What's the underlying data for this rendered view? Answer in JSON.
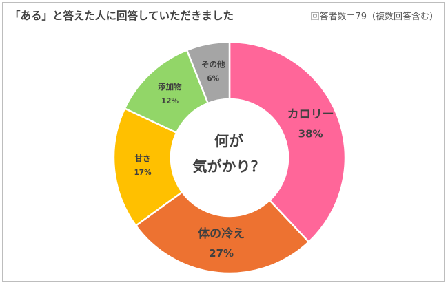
{
  "header": {
    "title": "「ある」と答えた人に回答していただきました",
    "note": "回答者数＝79（複数回答含む）"
  },
  "chart_data": {
    "type": "pie",
    "donut": true,
    "start_angle": "12 o'clock, clockwise",
    "center_text": [
      "何が",
      "気がかり？"
    ],
    "slices": [
      {
        "label": "カロリー",
        "value": 38,
        "value_label": "38%",
        "color": "#ff6699"
      },
      {
        "label": "体の冷え",
        "value": 27,
        "value_label": "27%",
        "color": "#ed7231"
      },
      {
        "label": "甘さ",
        "value": 17,
        "value_label": "17%",
        "color": "#ffc000"
      },
      {
        "label": "添加物",
        "value": 12,
        "value_label": "12%",
        "color": "#92d668"
      },
      {
        "label": "その他",
        "value": 6,
        "value_label": "6%",
        "color": "#a5a5a5"
      }
    ]
  }
}
